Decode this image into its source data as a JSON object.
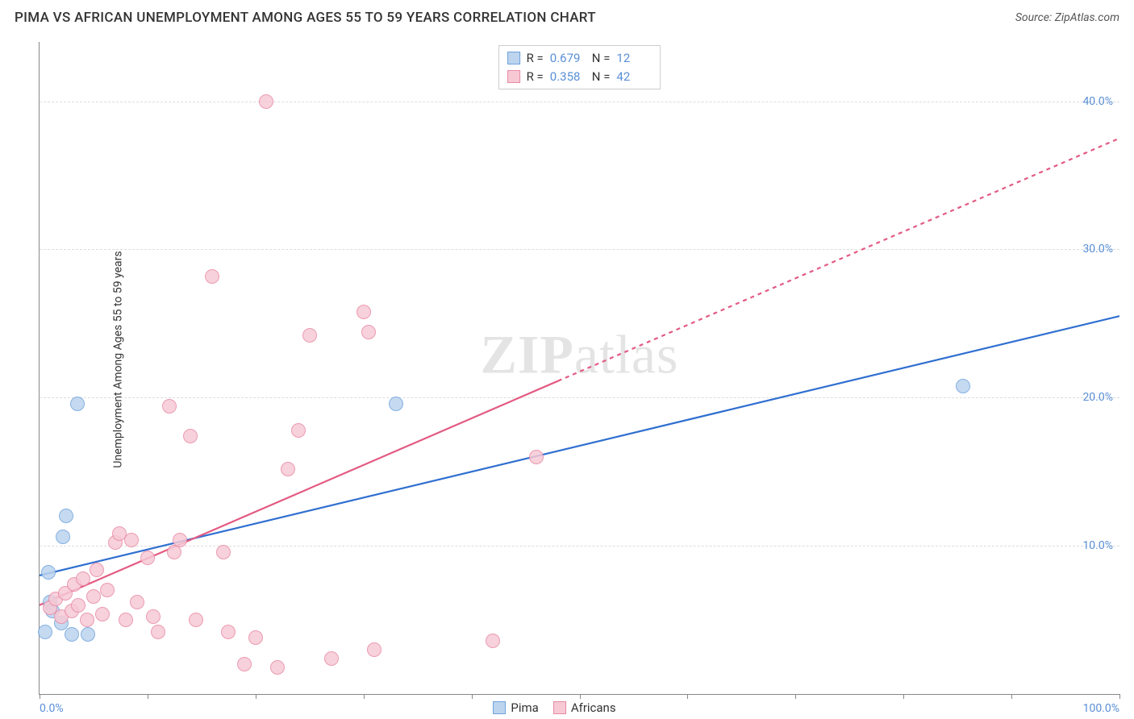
{
  "title": "PIMA VS AFRICAN UNEMPLOYMENT AMONG AGES 55 TO 59 YEARS CORRELATION CHART",
  "source_label": "Source: ZipAtlas.com",
  "watermark_bold": "ZIP",
  "watermark_rest": "atlas",
  "ylabel": "Unemployment Among Ages 55 to 59 years",
  "chart": {
    "type": "scatter",
    "xlim": [
      0,
      100
    ],
    "ylim": [
      0,
      44
    ],
    "x_ticks": [
      0,
      10,
      20,
      30,
      40,
      50,
      60,
      70,
      80,
      90,
      100
    ],
    "x_tick_labels": {
      "0": "0.0%",
      "100": "100.0%"
    },
    "y_gridlines": [
      10,
      20,
      30,
      40
    ],
    "y_tick_labels": {
      "10": "10.0%",
      "20": "20.0%",
      "30": "30.0%",
      "40": "40.0%"
    },
    "background_color": "#ffffff",
    "grid_color": "#dddddd",
    "axis_color": "#888888",
    "tick_label_color": "#5a8fd6",
    "label_fontsize": 14,
    "tick_fontsize": 14,
    "title_fontsize": 17,
    "point_radius": 9,
    "point_opacity": 0.85
  },
  "series": [
    {
      "name": "Pima",
      "fill_color": "#bcd4ee",
      "stroke_color": "#6fa3dd",
      "line_color": "#2f6fd0",
      "line_width": 2.2,
      "line_dash": "none",
      "line_extrapolate_dash": "none",
      "reg_line": {
        "x1": 0,
        "y1": 8.0,
        "x2": 100,
        "y2": 25.5
      },
      "data_range_x": [
        0,
        100
      ],
      "R_label": "R =",
      "R": "0.679",
      "N_label": "N =",
      "N": "12",
      "points": [
        {
          "x": 0.5,
          "y": 4.2
        },
        {
          "x": 0.8,
          "y": 8.2
        },
        {
          "x": 1.0,
          "y": 6.2
        },
        {
          "x": 1.2,
          "y": 5.6
        },
        {
          "x": 2.0,
          "y": 4.8
        },
        {
          "x": 3.0,
          "y": 4.0
        },
        {
          "x": 2.2,
          "y": 10.6
        },
        {
          "x": 2.5,
          "y": 12.0
        },
        {
          "x": 4.5,
          "y": 4.0
        },
        {
          "x": 3.5,
          "y": 19.6
        },
        {
          "x": 33.0,
          "y": 19.6
        },
        {
          "x": 85.5,
          "y": 20.8
        }
      ]
    },
    {
      "name": "Africans",
      "fill_color": "#f6c9d5",
      "stroke_color": "#e88aa5",
      "line_color": "#e35a82",
      "line_width": 2.2,
      "line_dash": "none",
      "line_extrapolate_dash": "5,5",
      "reg_line": {
        "x1": 0,
        "y1": 6.0,
        "x2": 100,
        "y2": 37.5
      },
      "data_range_x": [
        0,
        48
      ],
      "R_label": "R =",
      "R": "0.358",
      "N_label": "N =",
      "N": "42",
      "points": [
        {
          "x": 1.0,
          "y": 5.8
        },
        {
          "x": 1.5,
          "y": 6.4
        },
        {
          "x": 2.0,
          "y": 5.2
        },
        {
          "x": 2.4,
          "y": 6.8
        },
        {
          "x": 3.0,
          "y": 5.6
        },
        {
          "x": 3.2,
          "y": 7.4
        },
        {
          "x": 3.6,
          "y": 6.0
        },
        {
          "x": 4.0,
          "y": 7.8
        },
        {
          "x": 4.4,
          "y": 5.0
        },
        {
          "x": 5.0,
          "y": 6.6
        },
        {
          "x": 5.3,
          "y": 8.4
        },
        {
          "x": 5.8,
          "y": 5.4
        },
        {
          "x": 6.3,
          "y": 7.0
        },
        {
          "x": 7.0,
          "y": 10.2
        },
        {
          "x": 7.4,
          "y": 10.8
        },
        {
          "x": 8.0,
          "y": 5.0
        },
        {
          "x": 8.5,
          "y": 10.4
        },
        {
          "x": 9.0,
          "y": 6.2
        },
        {
          "x": 10.0,
          "y": 9.2
        },
        {
          "x": 10.5,
          "y": 5.2
        },
        {
          "x": 11.0,
          "y": 4.2
        },
        {
          "x": 12.0,
          "y": 19.4
        },
        {
          "x": 12.5,
          "y": 9.6
        },
        {
          "x": 13.0,
          "y": 10.4
        },
        {
          "x": 14.0,
          "y": 17.4
        },
        {
          "x": 14.5,
          "y": 5.0
        },
        {
          "x": 16.0,
          "y": 28.2
        },
        {
          "x": 17.0,
          "y": 9.6
        },
        {
          "x": 17.5,
          "y": 4.2
        },
        {
          "x": 19.0,
          "y": 2.0
        },
        {
          "x": 20.0,
          "y": 3.8
        },
        {
          "x": 22.0,
          "y": 1.8
        },
        {
          "x": 21.0,
          "y": 40.0
        },
        {
          "x": 23.0,
          "y": 15.2
        },
        {
          "x": 24.0,
          "y": 17.8
        },
        {
          "x": 25.0,
          "y": 24.2
        },
        {
          "x": 27.0,
          "y": 2.4
        },
        {
          "x": 30.0,
          "y": 25.8
        },
        {
          "x": 30.5,
          "y": 24.4
        },
        {
          "x": 31.0,
          "y": 3.0
        },
        {
          "x": 42.0,
          "y": 3.6
        },
        {
          "x": 46.0,
          "y": 16.0
        }
      ]
    }
  ],
  "legend_bottom": [
    {
      "label": "Pima",
      "fill": "#bcd4ee",
      "stroke": "#6fa3dd"
    },
    {
      "label": "Africans",
      "fill": "#f6c9d5",
      "stroke": "#e88aa5"
    }
  ]
}
